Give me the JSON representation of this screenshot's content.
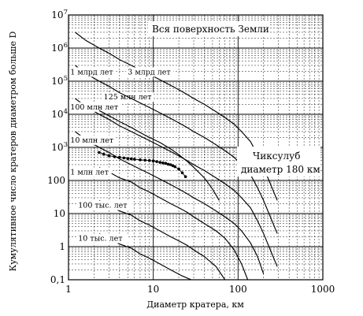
{
  "chart_data": {
    "type": "line",
    "title": "",
    "xlabel": "Диаметр кратера, км",
    "ylabel": "Кумулятивное число кратеров   диаметром больше D",
    "xscale": "log",
    "yscale": "log",
    "xlim": [
      1,
      1000
    ],
    "ylim": [
      0.1,
      10000000
    ],
    "grid": true,
    "x_ticks": [
      {
        "value": 1,
        "label": "1"
      },
      {
        "value": 10,
        "label": "10"
      },
      {
        "value": 100,
        "label": "100"
      },
      {
        "value": 1000,
        "label": "1000"
      }
    ],
    "y_ticks": [
      {
        "value": 0.1,
        "base": "0,1",
        "exp": ""
      },
      {
        "value": 1,
        "base": "1",
        "exp": ""
      },
      {
        "value": 10,
        "base": "10",
        "exp": ""
      },
      {
        "value": 100,
        "base": "100",
        "exp": ""
      },
      {
        "value": 1000,
        "base": "10",
        "exp": "3"
      },
      {
        "value": 10000,
        "base": "10",
        "exp": "4"
      },
      {
        "value": 100000,
        "base": "10",
        "exp": "5"
      },
      {
        "value": 1000000,
        "base": "10",
        "exp": "6"
      },
      {
        "value": 10000000,
        "base": "10",
        "exp": "7"
      }
    ],
    "annotations": {
      "surface": "Вся поверхность Земли",
      "chicxulub_line1": "Чиксулуб",
      "chicxulub_line2": "диаметр 180 км"
    },
    "series": [
      {
        "name": "10 тыс. лет",
        "label_x": 1.3,
        "label_y": 1.5,
        "x": [
          2.3,
          3,
          4,
          5.5,
          7,
          9,
          12,
          16,
          22,
          28
        ],
        "y": [
          2.5,
          1.8,
          1.2,
          0.9,
          0.6,
          0.45,
          0.3,
          0.2,
          0.13,
          0.1
        ]
      },
      {
        "name": "100 тыс. лет",
        "label_x": 1.3,
        "label_y": 15,
        "x": [
          2.3,
          3,
          4,
          5.5,
          7,
          9,
          12,
          16,
          20,
          25,
          30,
          40,
          55,
          70
        ],
        "y": [
          25,
          18,
          12,
          9,
          6,
          4.5,
          3,
          2,
          1.5,
          1.1,
          0.8,
          0.5,
          0.25,
          0.1
        ]
      },
      {
        "name": "1 млн лет",
        "label_x": 1.05,
        "label_y": 150,
        "x": [
          2.3,
          3,
          4,
          5.5,
          7,
          9,
          12,
          16,
          20,
          25,
          30,
          40,
          55,
          70,
          90,
          110,
          130
        ],
        "y": [
          250,
          180,
          120,
          90,
          60,
          45,
          30,
          20,
          15,
          11,
          8,
          5,
          3,
          1.8,
          0.8,
          0.3,
          0.1
        ]
      },
      {
        "name": "10 млн лет",
        "label_x": 1.05,
        "label_y": 1400,
        "x": [
          1.2,
          1.6,
          2.3,
          3,
          4,
          5.5,
          7,
          9,
          12,
          16,
          20,
          25,
          30,
          40,
          55,
          70,
          90,
          110,
          140,
          170,
          200
        ],
        "y": [
          3000,
          1700,
          1000,
          700,
          450,
          300,
          220,
          160,
          110,
          75,
          55,
          40,
          30,
          20,
          12,
          8,
          5,
          3,
          1.3,
          0.5,
          0.15
        ]
      },
      {
        "name": "100 млн лет",
        "label_x": 1.05,
        "label_y": 14000,
        "x": [
          1.2,
          1.6,
          2.3,
          3,
          4,
          5.5,
          7,
          9,
          12,
          16,
          20,
          25,
          30,
          40,
          55,
          70,
          90,
          110,
          140,
          170,
          200,
          240,
          290
        ],
        "y": [
          30000,
          17000,
          10000,
          7000,
          4500,
          3000,
          2200,
          1600,
          1100,
          750,
          550,
          400,
          300,
          200,
          120,
          80,
          50,
          30,
          15,
          6,
          2.5,
          0.8,
          0.25
        ]
      },
      {
        "name": "125 млн лет",
        "label_x": 2.6,
        "label_y": 28000,
        "x": [
          2.3,
          3,
          4,
          5.5,
          7,
          9,
          12,
          16,
          20,
          25,
          30,
          40,
          50,
          60
        ],
        "y": [
          13000,
          9000,
          6000,
          4000,
          2800,
          2000,
          1400,
          900,
          600,
          380,
          250,
          120,
          55,
          25
        ]
      },
      {
        "name": "1 млрд лет",
        "label_x": 1.05,
        "label_y": 160000,
        "x": [
          1.2,
          1.6,
          2.3,
          3,
          4,
          5.5,
          7,
          9,
          12,
          16,
          20,
          25,
          30,
          40,
          55,
          70,
          90,
          110,
          140,
          170,
          200,
          240,
          290
        ],
        "y": [
          300000,
          170000,
          100000,
          70000,
          45000,
          30000,
          22000,
          16000,
          11000,
          7500,
          5500,
          4000,
          3000,
          2000,
          1200,
          800,
          500,
          300,
          150,
          60,
          25,
          8,
          2.5
        ]
      },
      {
        "name": "3 млрд лет",
        "label_x": 5,
        "label_y": 160000,
        "x": [
          1.2,
          1.6,
          2.3,
          3,
          4,
          5.5,
          7,
          9,
          12,
          16,
          20,
          25,
          30,
          40,
          55,
          70,
          90,
          110,
          140,
          170,
          200,
          240,
          290
        ],
        "y": [
          3000000,
          1700000,
          1000000,
          700000,
          450000,
          300000,
          220000,
          160000,
          110000,
          75000,
          55000,
          40000,
          30000,
          20000,
          12000,
          8000,
          5000,
          3000,
          1500,
          600,
          250,
          80,
          25
        ]
      },
      {
        "name": "Чиксулуб",
        "style": "points",
        "x": [
          2.3,
          2.6,
          3,
          3.5,
          4,
          4.5,
          5,
          5.5,
          6,
          7,
          8,
          9,
          10,
          11,
          12,
          13,
          14,
          15,
          16,
          17,
          18,
          20,
          22,
          24
        ],
        "y": [
          700,
          620,
          560,
          520,
          500,
          480,
          460,
          450,
          440,
          420,
          410,
          400,
          390,
          370,
          350,
          340,
          330,
          310,
          300,
          280,
          260,
          220,
          170,
          130
        ]
      }
    ]
  }
}
